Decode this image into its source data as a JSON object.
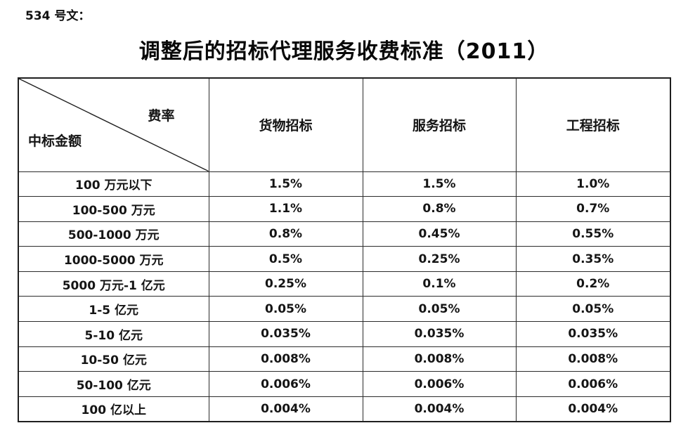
{
  "page": {
    "doc_ref": "534 号文：",
    "title": "调整后的招标代理服务收费标准（2011）"
  },
  "table": {
    "corner": {
      "top_right_label": "费率",
      "bottom_left_label": "中标金额"
    },
    "columns": [
      "货物招标",
      "服务招标",
      "工程招标"
    ],
    "rows": [
      {
        "label": "100 万元以下",
        "values": [
          "1.5%",
          "1.5%",
          "1.0%"
        ]
      },
      {
        "label": "100-500 万元",
        "values": [
          "1.1%",
          "0.8%",
          "0.7%"
        ]
      },
      {
        "label": "500-1000 万元",
        "values": [
          "0.8%",
          "0.45%",
          "0.55%"
        ]
      },
      {
        "label": "1000-5000 万元",
        "values": [
          "0.5%",
          "0.25%",
          "0.35%"
        ]
      },
      {
        "label": "5000 万元-1 亿元",
        "values": [
          "0.25%",
          "0.1%",
          "0.2%"
        ]
      },
      {
        "label": "1-5 亿元",
        "values": [
          "0.05%",
          "0.05%",
          "0.05%"
        ]
      },
      {
        "label": "5-10 亿元",
        "values": [
          "0.035%",
          "0.035%",
          "0.035%"
        ]
      },
      {
        "label": "10-50 亿元",
        "values": [
          "0.008%",
          "0.008%",
          "0.008%"
        ]
      },
      {
        "label": "50-100 亿元",
        "values": [
          "0.006%",
          "0.006%",
          "0.006%"
        ]
      },
      {
        "label": "100 亿以上",
        "values": [
          "0.004%",
          "0.004%",
          "0.004%"
        ]
      }
    ],
    "colors": {
      "border": "#1f1f1f",
      "text": "#151515",
      "background": "#ffffff"
    }
  }
}
